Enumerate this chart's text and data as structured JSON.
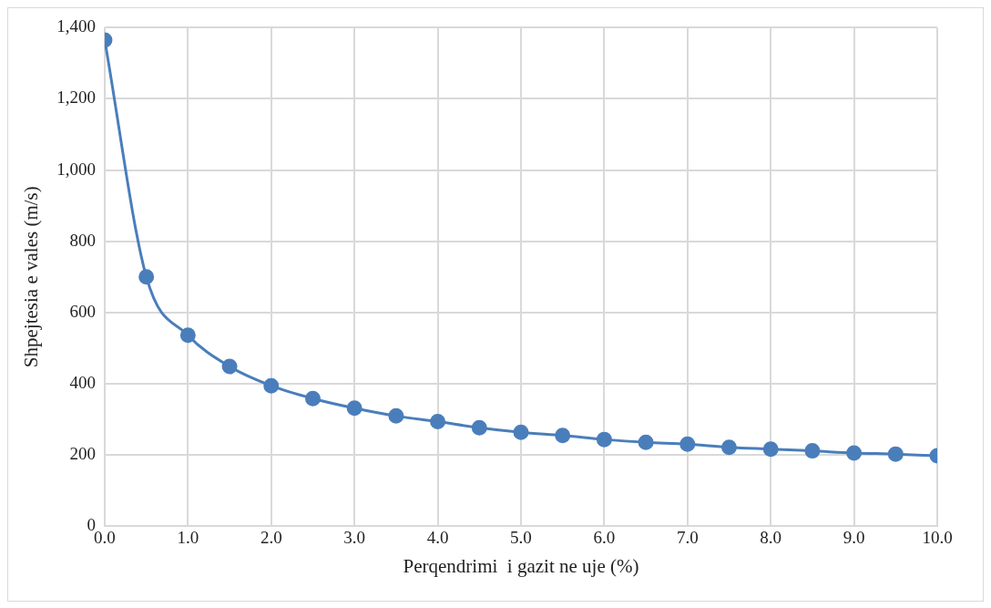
{
  "chart_data": {
    "type": "line",
    "xlabel": "Perqendrimi  i gazit ne uje (%)",
    "ylabel": "Shpejtesia e vales (m/s)",
    "x": [
      0,
      0.5,
      1,
      1.5,
      2,
      2.5,
      3,
      3.5,
      4,
      4.5,
      5,
      5.5,
      6,
      6.5,
      7,
      7.5,
      8,
      8.5,
      9,
      9.5,
      10
    ],
    "series": [
      {
        "color": "#4a7ebb",
        "values": [
          1365,
          700,
          536,
          448,
          394,
          358,
          331,
          309,
          293,
          276,
          263,
          254,
          243,
          235,
          230,
          221,
          216,
          211,
          205,
          202,
          197
        ]
      }
    ],
    "xlim": [
      0,
      10
    ],
    "xticks": [
      {
        "value": 0,
        "label": "0.0"
      },
      {
        "value": 1,
        "label": "1.0"
      },
      {
        "value": 2,
        "label": "2.0"
      },
      {
        "value": 3,
        "label": "3.0"
      },
      {
        "value": 4,
        "label": "4.0"
      },
      {
        "value": 5,
        "label": "5.0"
      },
      {
        "value": 6,
        "label": "6.0"
      },
      {
        "value": 7,
        "label": "7.0"
      },
      {
        "value": 8,
        "label": "8.0"
      },
      {
        "value": 9,
        "label": "9.0"
      },
      {
        "value": 10,
        "label": "10.0"
      }
    ],
    "ylim": [
      0,
      1400
    ],
    "yticks": [
      {
        "value": 0,
        "label": "0"
      },
      {
        "value": 200,
        "label": "200"
      },
      {
        "value": 400,
        "label": "400"
      },
      {
        "value": 600,
        "label": "600"
      },
      {
        "value": 800,
        "label": "800"
      },
      {
        "value": 1000,
        "label": "1,000"
      },
      {
        "value": 1200,
        "label": "1,200"
      },
      {
        "value": 1400,
        "label": "1,400"
      }
    ],
    "grid": true,
    "legend": false,
    "marker": "circle",
    "line_style": "solid"
  }
}
